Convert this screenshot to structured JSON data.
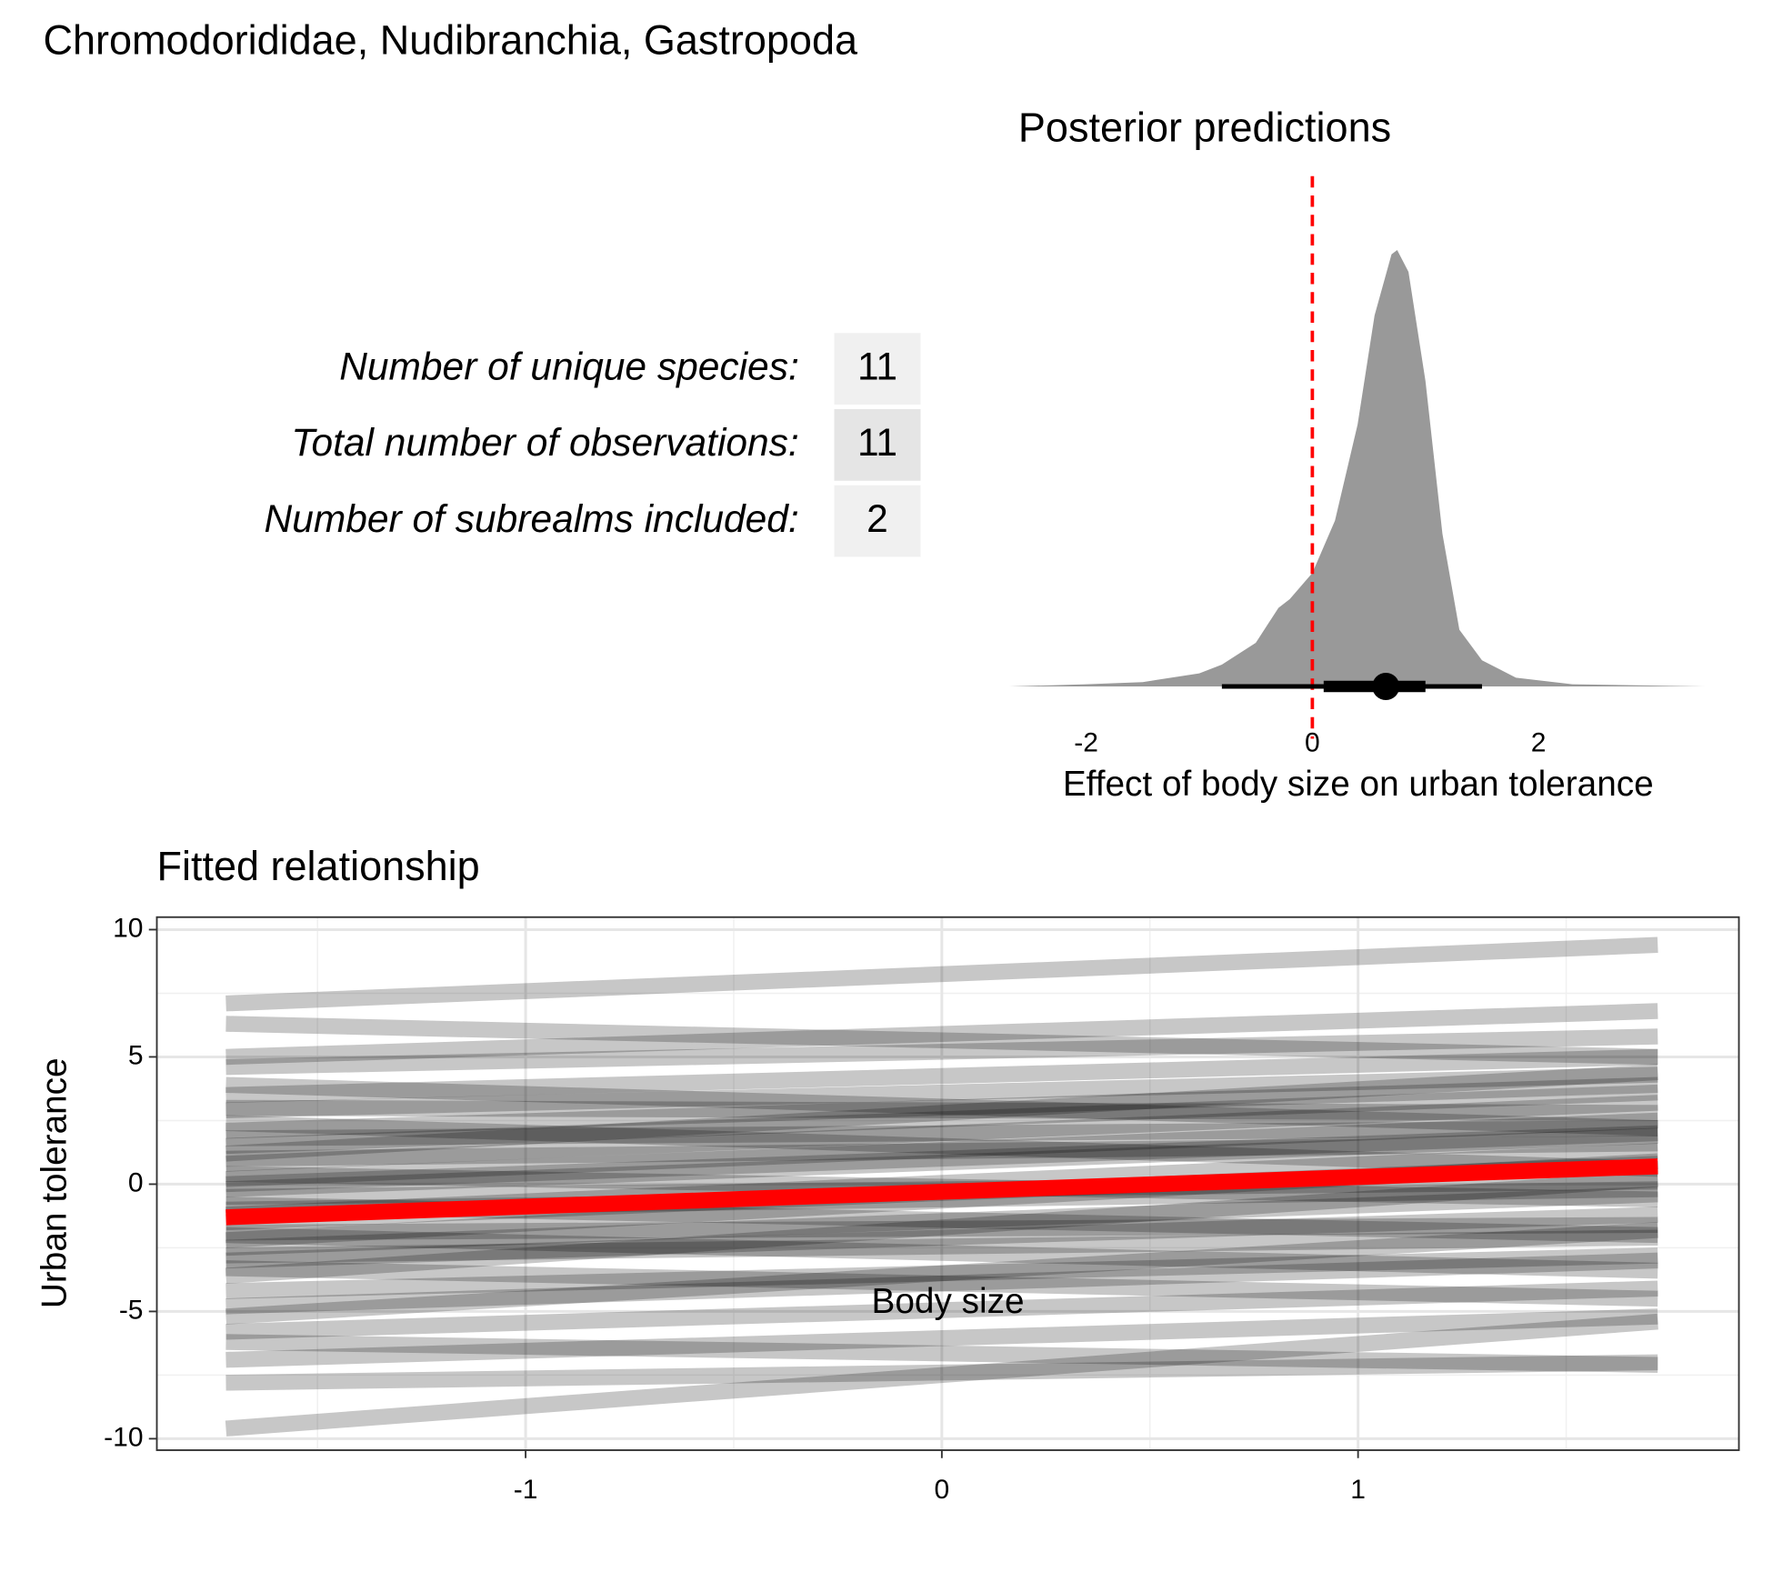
{
  "title": "Chromodorididae, Nudibranchia, Gastropoda",
  "stats": {
    "rows": [
      {
        "label": "Number of unique species:",
        "value": 11
      },
      {
        "label": "Total number of observations:",
        "value": 11
      },
      {
        "label": "Number of subrealms included:",
        "value": 2
      }
    ]
  },
  "chart_data": [
    {
      "type": "density",
      "title": "Posterior predictions",
      "xlabel": "Effect of body size on urban tolerance",
      "xlim": [
        -2.68,
        3.47
      ],
      "xticks": [
        -2,
        0,
        2
      ],
      "ylim": [
        0,
        1.05
      ],
      "x": [
        -2.68,
        -2,
        -1.5,
        -1,
        -0.8,
        -0.5,
        -0.3,
        -0.2,
        0,
        0.2,
        0.4,
        0.55,
        0.7,
        0.75,
        0.85,
        1.0,
        1.15,
        1.3,
        1.5,
        1.8,
        2.3,
        3.47
      ],
      "values": [
        0,
        0.005,
        0.01,
        0.03,
        0.05,
        0.1,
        0.18,
        0.2,
        0.26,
        0.38,
        0.6,
        0.85,
        0.99,
        1.0,
        0.95,
        0.7,
        0.35,
        0.13,
        0.06,
        0.02,
        0.005,
        0
      ],
      "color": "#999999",
      "reference_x": 0,
      "reference_color": "#ff0000",
      "point": 0.65,
      "interval_inner": [
        0.1,
        1.0
      ],
      "interval_outer": [
        -0.8,
        1.5
      ]
    },
    {
      "type": "line",
      "title": "Fitted relationship",
      "xlabel": "Body size",
      "ylabel": "Urban tolerance",
      "xlim": [
        -1.886,
        1.915
      ],
      "ylim": [
        -10.45,
        10.49
      ],
      "xticks": [
        -1,
        0,
        1
      ],
      "yticks": [
        -10,
        -5,
        0,
        5,
        10
      ],
      "xminor": [
        -1.5,
        -0.5,
        0.5,
        1.5
      ],
      "yminor": [
        -7.5,
        -2.5,
        2.5,
        7.5
      ],
      "grid": true,
      "x": [
        -1.72,
        1.72
      ],
      "draws": [
        [
          -1.5,
          0.8
        ],
        [
          0.2,
          2.5
        ],
        [
          -3,
          -1.2
        ],
        [
          2.1,
          3.9
        ],
        [
          -4.2,
          -2.8
        ],
        [
          1.0,
          1.6
        ],
        [
          -2.2,
          0.9
        ],
        [
          3.5,
          5.0
        ],
        [
          -0.5,
          0.1
        ],
        [
          -5.8,
          -4.1
        ],
        [
          0.8,
          3.2
        ],
        [
          -1.0,
          -0.2
        ],
        [
          4.6,
          5.8
        ],
        [
          -2.8,
          -2.1
        ],
        [
          -6.9,
          -5.2
        ],
        [
          1.8,
          2.2
        ],
        [
          -3.6,
          0.2
        ],
        [
          2.9,
          4.3
        ],
        [
          -0.2,
          1.9
        ],
        [
          -1.9,
          -1.6
        ],
        [
          6.3,
          5.0
        ],
        [
          -7.8,
          -7.0
        ],
        [
          0.4,
          -0.6
        ],
        [
          -4.8,
          -3.0
        ],
        [
          3.0,
          2.8
        ],
        [
          -2.5,
          -0.4
        ],
        [
          1.5,
          3.6
        ],
        [
          -9.6,
          -5.4
        ],
        [
          7.1,
          9.4
        ],
        [
          -1.2,
          1.3
        ],
        [
          5.0,
          6.8
        ],
        [
          -3.3,
          -4.5
        ],
        [
          2.4,
          0.6
        ],
        [
          -6.2,
          -7.1
        ],
        [
          0.0,
          2.0
        ],
        [
          -0.8,
          -2.0
        ],
        [
          3.9,
          2.2
        ],
        [
          -5.2,
          -1.8
        ],
        [
          1.2,
          4.4
        ],
        [
          -2.0,
          -3.4
        ]
      ],
      "draw_color": "#000000",
      "series": [
        {
          "values": [
            -1.3,
            0.7
          ],
          "color": "#ff0000"
        }
      ]
    }
  ]
}
